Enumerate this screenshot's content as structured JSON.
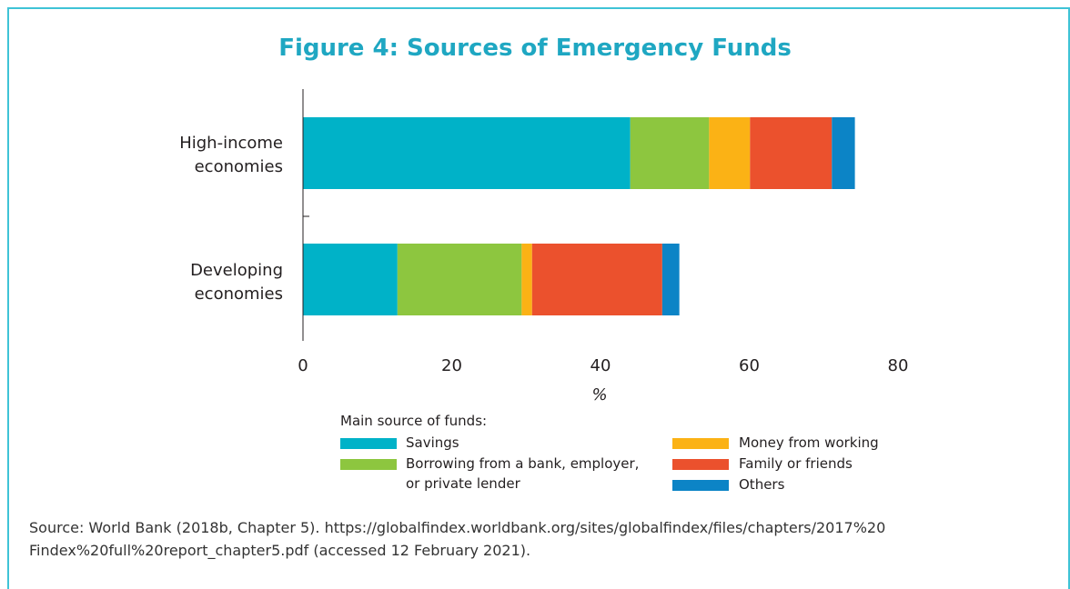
{
  "source": {
    "line1": "Source: World Bank (2018b, Chapter 5). https://globalfindex.worldbank.org/sites/globalfindex/files/chapters/2017%20",
    "line2": "Findex%20full%20report_chapter5.pdf (accessed 12 February 2021)."
  },
  "legend": {
    "title": "Main source of funds:",
    "items": [
      {
        "label": "Savings",
        "color": "#00b2c8"
      },
      {
        "label": "Borrowing from a bank, employer,",
        "label2": "or private lender",
        "color": "#8dc63f"
      },
      {
        "label": "Money from working",
        "color": "#fbb215"
      },
      {
        "label": "Family or friends",
        "color": "#eb512d"
      },
      {
        "label": "Others",
        "color": "#0c84c6"
      }
    ]
  },
  "chart_data": {
    "type": "bar",
    "orientation": "horizontal",
    "stacked": true,
    "title": "Figure 4: Sources of Emergency Funds",
    "xlabel": "%",
    "ylabel": "",
    "xlim": [
      0,
      80
    ],
    "xticks": [
      "0",
      "20",
      "40",
      "60",
      "80"
    ],
    "categories": [
      {
        "line1": "High-income",
        "line2": "economies"
      },
      {
        "line1": "Developing",
        "line2": "economies"
      }
    ],
    "series": [
      {
        "name": "Savings",
        "color": "#00b2c8",
        "values": [
          44,
          12.7
        ]
      },
      {
        "name": "Borrowing from a bank, employer, or private lender",
        "color": "#8dc63f",
        "values": [
          10.6,
          16.7
        ]
      },
      {
        "name": "Money from working",
        "color": "#fbb215",
        "values": [
          5.5,
          1.4
        ]
      },
      {
        "name": "Family or friends",
        "color": "#eb512d",
        "values": [
          11,
          17.5
        ]
      },
      {
        "name": "Others",
        "color": "#0c84c6",
        "values": [
          3.1,
          2.3
        ]
      }
    ],
    "grid": false
  }
}
